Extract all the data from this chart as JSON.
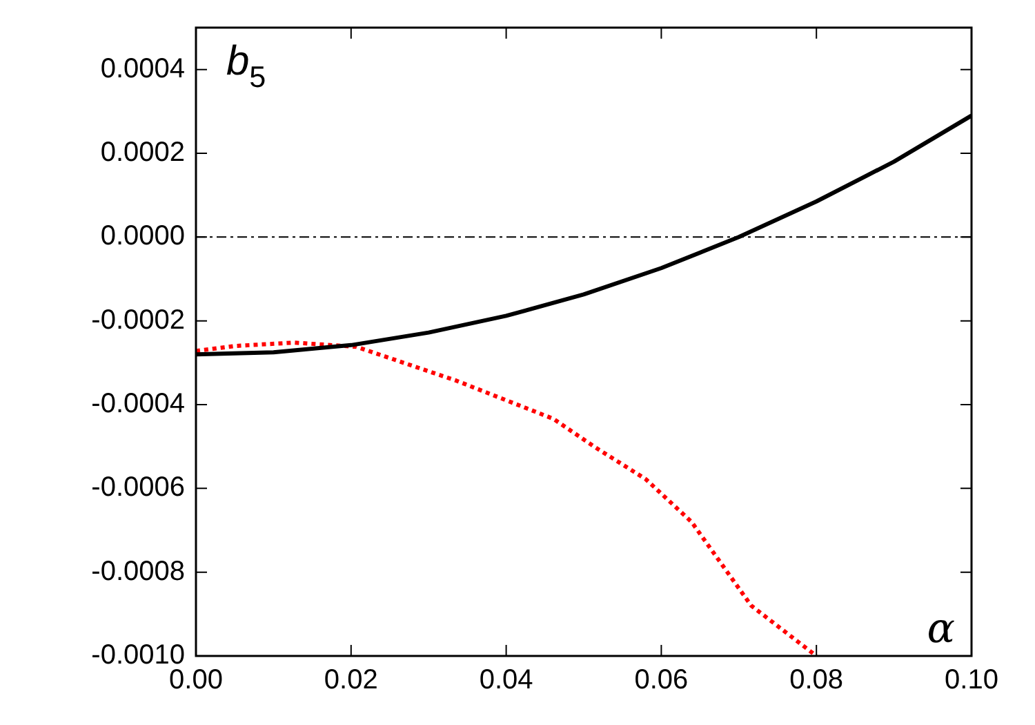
{
  "chart_data": {
    "type": "line",
    "xlabel": "α",
    "ylabel": "b$_{5}$",
    "xlim": [
      0,
      0.1
    ],
    "xticks": [
      {
        "value": 0,
        "label": "0.00"
      },
      {
        "value": 0.02,
        "label": "0.02"
      },
      {
        "value": 0.04,
        "label": "0.04"
      },
      {
        "value": 0.06,
        "label": "0.06"
      },
      {
        "value": 0.08,
        "label": "0.08"
      },
      {
        "value": 0.1,
        "label": "0.10"
      }
    ],
    "ylim": [
      -0.001,
      0.0005
    ],
    "yticks": [
      {
        "value": -0.001,
        "label": "-0.0010"
      },
      {
        "value": -0.0008,
        "label": "-0.0008"
      },
      {
        "value": -0.0006,
        "label": "-0.0006"
      },
      {
        "value": -0.0004,
        "label": "-0.0004"
      },
      {
        "value": -0.0002,
        "label": "-0.0002"
      },
      {
        "value": 0,
        "label": "0.0000"
      },
      {
        "value": 0.0002,
        "label": "0.0002"
      },
      {
        "value": 0.0004,
        "label": "0.0004"
      }
    ],
    "grid": false,
    "legend": false,
    "marker": "none",
    "ref_lines": [
      {
        "axis": "y",
        "value": 0,
        "color": "#000000",
        "line_style": "dashdot"
      }
    ],
    "series": [
      {
        "color": "#000000",
        "line_style": "solid",
        "x": [
          0,
          0.01,
          0.02,
          0.03,
          0.04,
          0.05,
          0.06,
          0.07,
          0.08,
          0.09,
          0.1
        ],
        "values": [
          -0.00028,
          -0.000275,
          -0.000258,
          -0.000228,
          -0.000188,
          -0.000137,
          -7.4e-05,
          0,
          8.5e-05,
          0.00018,
          0.00029
        ]
      },
      {
        "color": "#ff0000",
        "line_style": "dotted",
        "x": [
          0,
          0.005,
          0.0127,
          0.0207,
          0.0336,
          0.0461,
          0.0514,
          0.058,
          0.0639,
          0.0716,
          0.08
        ],
        "values": [
          -0.000272,
          -0.00026,
          -0.000252,
          -0.000262,
          -0.000343,
          -0.000434,
          -0.000501,
          -0.000578,
          -0.00068,
          -0.00088,
          -0.001
        ]
      }
    ]
  }
}
